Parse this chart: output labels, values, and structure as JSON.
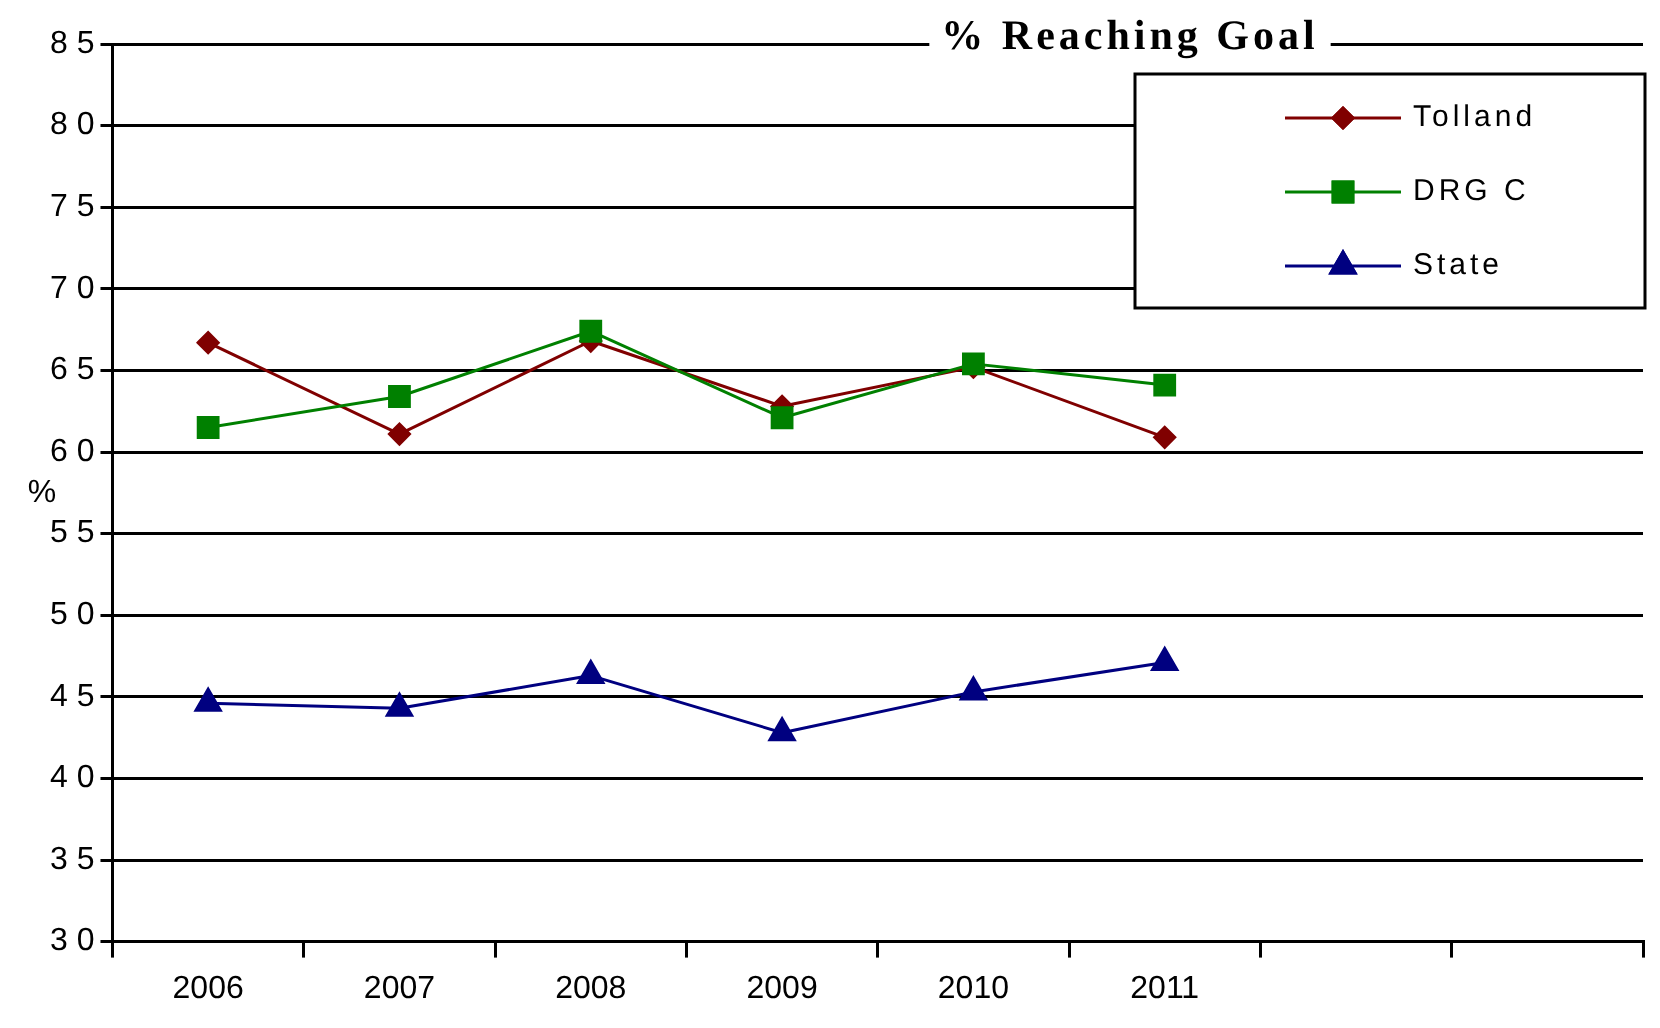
{
  "chart_data": {
    "type": "line",
    "title": "% Reaching Goal",
    "ylabel": "%",
    "categories": [
      "2006",
      "2007",
      "2008",
      "2009",
      "2010",
      "2011",
      null,
      null
    ],
    "series": [
      {
        "name": "Tolland",
        "color": "#800000",
        "marker": "diamond",
        "values": [
          66.7,
          61.1,
          66.8,
          62.8,
          65.2,
          60.9,
          null,
          null
        ]
      },
      {
        "name": "DRG C",
        "color": "#008000",
        "marker": "square",
        "values": [
          61.5,
          63.4,
          67.4,
          62.1,
          65.4,
          64.1,
          null,
          null
        ]
      },
      {
        "name": "State",
        "color": "#000080",
        "marker": "triangle",
        "values": [
          44.6,
          44.3,
          46.3,
          42.8,
          45.3,
          47.1,
          null,
          null
        ]
      }
    ],
    "ylim": [
      30,
      85
    ],
    "yticks": [
      30,
      35,
      40,
      45,
      50,
      55,
      60,
      65,
      70,
      75,
      80,
      85
    ],
    "grid": "y",
    "legend": "top right"
  }
}
